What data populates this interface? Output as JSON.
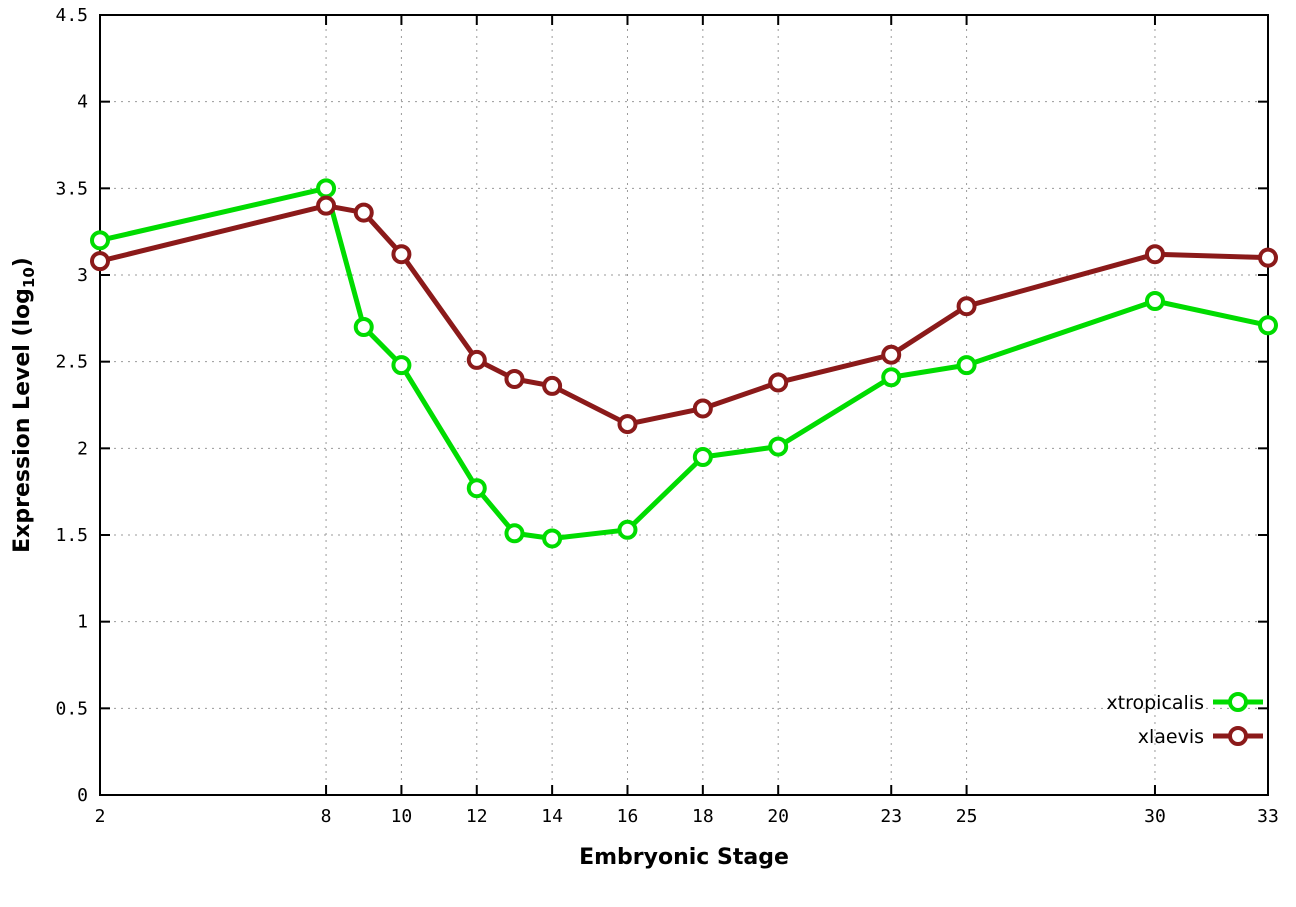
{
  "chart_data": {
    "type": "line",
    "x": [
      2,
      8,
      9,
      10,
      12,
      13,
      14,
      16,
      18,
      20,
      23,
      25,
      30,
      33
    ],
    "series": [
      {
        "name": "xtropicalis",
        "color": "#00dc00",
        "values": [
          3.2,
          3.5,
          2.7,
          2.48,
          1.77,
          1.51,
          1.48,
          1.53,
          1.95,
          2.01,
          2.41,
          2.48,
          2.85,
          2.71
        ]
      },
      {
        "name": "xlaevis",
        "color": "#8b1a1a",
        "values": [
          3.08,
          3.4,
          3.36,
          3.12,
          2.51,
          2.4,
          2.36,
          2.14,
          2.23,
          2.38,
          2.54,
          2.82,
          3.12,
          3.1
        ]
      }
    ],
    "title": "",
    "xlabel": "Embryonic Stage",
    "ylabel": "Expression Level (log10)",
    "ylabel_parts": {
      "main": "Expression Level (log",
      "sub": "10",
      "end": ")"
    },
    "xlim": [
      2,
      33
    ],
    "ylim": [
      0,
      4.5
    ],
    "xticks": {
      "values": [
        2,
        8,
        10,
        12,
        14,
        16,
        18,
        20,
        23,
        25,
        30,
        33
      ],
      "labels": [
        "2",
        "8",
        "10",
        "12",
        "14",
        "16",
        "18",
        "20",
        "23",
        "25",
        "30",
        "33"
      ]
    },
    "yticks": {
      "values": [
        0,
        0.5,
        1,
        1.5,
        2,
        2.5,
        3,
        3.5,
        4,
        4.5
      ],
      "labels": [
        "0",
        "0.5",
        "1",
        "1.5",
        "2",
        "2.5",
        "3",
        "3.5",
        "4",
        "4.5"
      ]
    },
    "grid": true,
    "legend_position": "bottom-right",
    "styles": {
      "background": "#ffffff",
      "grid_color": "#9a9a9a",
      "axis_color": "#000000",
      "line_width": 5,
      "marker_radius": 8,
      "marker_stroke": 4
    }
  }
}
